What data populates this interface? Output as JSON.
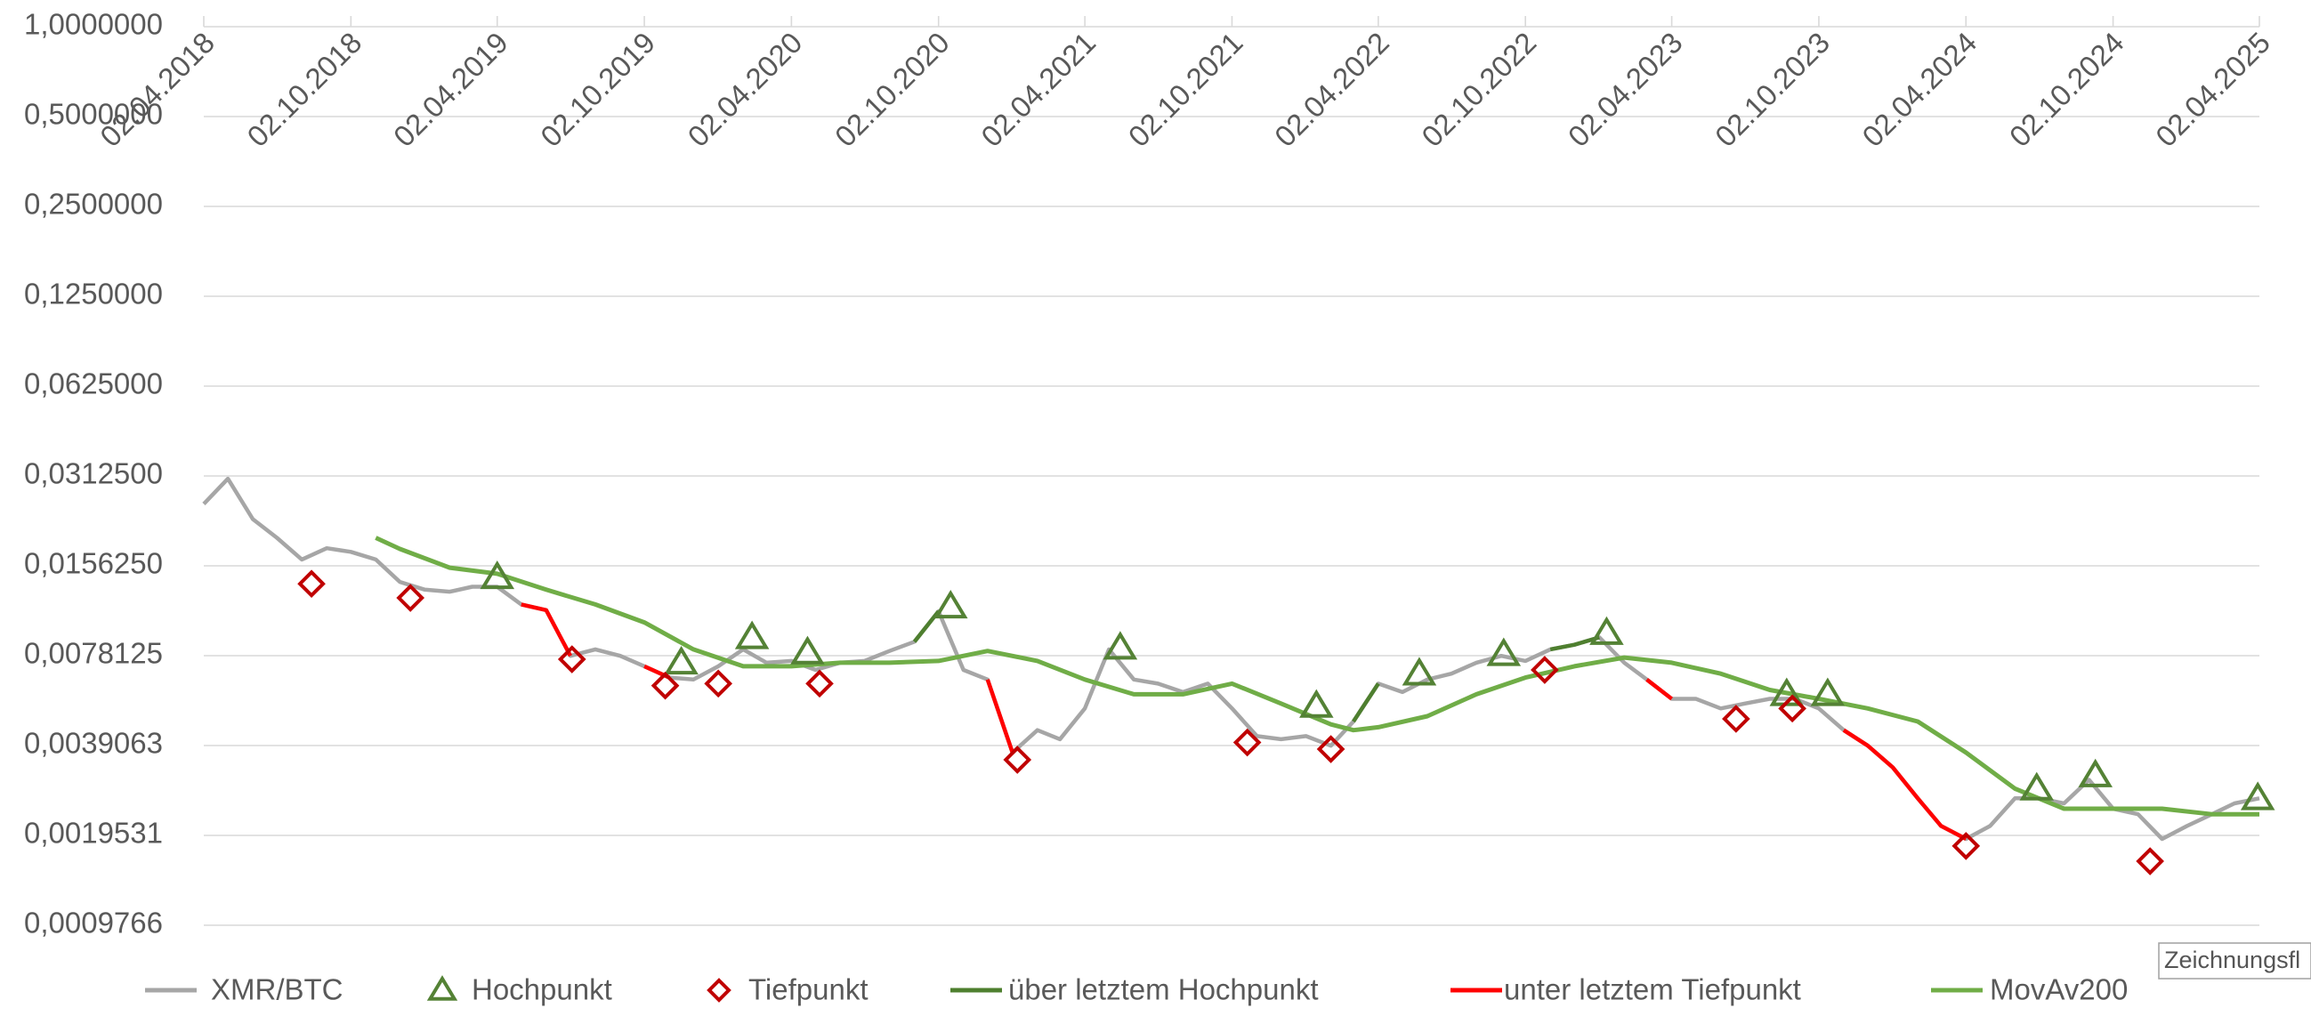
{
  "chart_data": {
    "type": "line",
    "log_base": 2,
    "grid": true,
    "legend": "bottom",
    "tooltip": "Zeichnungsfl",
    "xlim": [
      "02.04.2018",
      "02.04.2025"
    ],
    "xticks": [
      "02.04.2018",
      "02.10.2018",
      "02.04.2019",
      "02.10.2019",
      "02.04.2020",
      "02.10.2020",
      "02.04.2021",
      "02.10.2021",
      "02.04.2022",
      "02.10.2022",
      "02.04.2023",
      "02.10.2023",
      "02.04.2024",
      "02.10.2024",
      "02.04.2025"
    ],
    "ylim": [
      0.0009765625,
      1
    ],
    "yticks": [
      {
        "value": 1,
        "label": "1,0000000"
      },
      {
        "value": 0.5,
        "label": "0,5000000"
      },
      {
        "value": 0.25,
        "label": "0,2500000"
      },
      {
        "value": 0.125,
        "label": "0,1250000"
      },
      {
        "value": 0.0625,
        "label": "0,0625000"
      },
      {
        "value": 0.03125,
        "label": "0,0312500"
      },
      {
        "value": 0.015625,
        "label": "0,0156250"
      },
      {
        "value": 0.0078125,
        "label": "0,0078125"
      },
      {
        "value": 0.00390625,
        "label": "0,0039063"
      },
      {
        "value": 0.001953125,
        "label": "0,0019531"
      },
      {
        "value": 0.0009765625,
        "label": "0,0009766"
      }
    ],
    "x": [
      "02.04.2018",
      "02.05.2018",
      "02.06.2018",
      "02.07.2018",
      "02.08.2018",
      "02.09.2018",
      "02.10.2018",
      "02.11.2018",
      "02.12.2018",
      "02.01.2019",
      "02.02.2019",
      "02.03.2019",
      "02.04.2019",
      "02.05.2019",
      "02.06.2019",
      "02.07.2019",
      "02.08.2019",
      "02.09.2019",
      "02.10.2019",
      "02.11.2019",
      "02.12.2019",
      "02.01.2020",
      "02.02.2020",
      "02.03.2020",
      "02.04.2020",
      "02.05.2020",
      "02.06.2020",
      "02.07.2020",
      "02.08.2020",
      "02.09.2020",
      "02.10.2020",
      "02.11.2020",
      "02.12.2020",
      "02.01.2021",
      "02.02.2021",
      "02.03.2021",
      "02.04.2021",
      "02.05.2021",
      "02.06.2021",
      "02.07.2021",
      "02.08.2021",
      "02.09.2021",
      "02.10.2021",
      "02.11.2021",
      "02.12.2021",
      "02.01.2022",
      "02.02.2022",
      "02.03.2022",
      "02.04.2022",
      "02.05.2022",
      "02.06.2022",
      "02.07.2022",
      "02.08.2022",
      "02.09.2022",
      "02.10.2022",
      "02.11.2022",
      "02.12.2022",
      "02.01.2023",
      "02.02.2023",
      "02.03.2023",
      "02.04.2023",
      "02.05.2023",
      "02.06.2023",
      "02.07.2023",
      "02.08.2023",
      "02.09.2023",
      "02.10.2023",
      "02.11.2023",
      "02.12.2023",
      "02.01.2024",
      "02.02.2024",
      "02.03.2024",
      "02.04.2024",
      "02.05.2024",
      "02.06.2024",
      "02.07.2024",
      "02.08.2024",
      "02.09.2024",
      "02.10.2024",
      "02.11.2024",
      "02.12.2024",
      "02.01.2025",
      "02.02.2025",
      "02.03.2025",
      "02.04.2025"
    ],
    "series": [
      {
        "name": "XMR/BTC",
        "kind": "line",
        "color": "#a6a6a6",
        "values": [
          0.0252,
          0.0306,
          0.0224,
          0.0194,
          0.0164,
          0.0179,
          0.0174,
          0.0164,
          0.0138,
          0.013,
          0.0128,
          0.0133,
          0.0133,
          0.0116,
          0.0111,
          0.0078,
          0.0082,
          0.0078,
          0.0072,
          0.0066,
          0.0065,
          0.0072,
          0.0082,
          0.0074,
          0.0075,
          0.007,
          0.0074,
          0.0075,
          0.0081,
          0.0087,
          0.011,
          0.007,
          0.0065,
          0.0037,
          0.0044,
          0.0041,
          0.0052,
          0.0082,
          0.0065,
          0.0063,
          0.0059,
          0.0063,
          0.0052,
          0.0042,
          0.0041,
          0.0042,
          0.0039,
          0.0047,
          0.0063,
          0.0059,
          0.0065,
          0.0068,
          0.0074,
          0.0078,
          0.0075,
          0.0082,
          0.0085,
          0.009,
          0.0074,
          0.0065,
          0.0056,
          0.0056,
          0.0052,
          0.0054,
          0.0056,
          0.0056,
          0.0052,
          0.0044,
          0.0039,
          0.0033,
          0.0026,
          0.0021,
          0.0019,
          0.0021,
          0.0026,
          0.0026,
          0.0025,
          0.003,
          0.0024,
          0.0023,
          0.0019,
          0.0021,
          0.0023,
          0.0025,
          0.0026
        ]
      },
      {
        "name": "Hochpunkt",
        "kind": "marker",
        "marker": "triangle",
        "color": "#548235",
        "x": [
          "02.04.2019",
          "17.11.2019",
          "13.02.2020",
          "22.04.2020",
          "17.10.2020",
          "16.05.2021",
          "15.01.2022",
          "23.05.2022",
          "05.09.2022",
          "11.01.2023",
          "23.08.2023",
          "13.10.2023",
          "29.06.2024",
          "10.09.2024",
          "31.03.2025"
        ],
        "values": [
          0.0143,
          0.0074,
          0.009,
          0.008,
          0.0114,
          0.0083,
          0.0053,
          0.0068,
          0.0079,
          0.0093,
          0.0058,
          0.0058,
          0.0028,
          0.0031,
          0.0026
        ]
      },
      {
        "name": "Tiefpunkt",
        "kind": "marker",
        "marker": "diamond",
        "color": "#c00000",
        "x": [
          "14.08.2018",
          "15.12.2018",
          "04.07.2019",
          "28.10.2019",
          "02.01.2020",
          "07.05.2020",
          "08.01.2021",
          "21.10.2021",
          "02.02.2022",
          "26.10.2022",
          "21.06.2023",
          "30.08.2023",
          "02.04.2024",
          "17.11.2024"
        ],
        "values": [
          0.0136,
          0.0122,
          0.0076,
          0.0062,
          0.0063,
          0.0063,
          0.0035,
          0.004,
          0.0038,
          0.007,
          0.0048,
          0.0052,
          0.0018,
          0.0016
        ]
      },
      {
        "name": "über letztem Hochpunkt",
        "kind": "line",
        "color": "#4e7f2f",
        "values": [
          null,
          null,
          null,
          null,
          null,
          null,
          null,
          null,
          null,
          null,
          null,
          null,
          null,
          null,
          null,
          null,
          null,
          null,
          null,
          null,
          null,
          null,
          null,
          null,
          null,
          null,
          null,
          null,
          null,
          0.0087,
          0.011,
          null,
          null,
          null,
          null,
          null,
          null,
          null,
          null,
          null,
          null,
          null,
          null,
          null,
          null,
          null,
          null,
          0.0047,
          0.0063,
          null,
          null,
          null,
          null,
          null,
          null,
          0.0082,
          0.0085,
          0.009,
          null,
          null,
          null,
          null,
          null,
          null,
          null,
          null,
          null,
          null,
          null,
          null,
          null,
          null,
          null,
          null,
          null,
          null,
          null,
          null,
          null,
          null,
          null,
          null,
          null,
          null,
          null
        ]
      },
      {
        "name": "unter letztem Tiefpunkt",
        "kind": "line",
        "color": "#ff0000",
        "values": [
          null,
          null,
          null,
          null,
          null,
          null,
          null,
          null,
          null,
          null,
          null,
          null,
          null,
          0.0116,
          0.0111,
          0.0078,
          null,
          null,
          0.0072,
          0.0066,
          null,
          null,
          null,
          null,
          null,
          null,
          null,
          null,
          null,
          null,
          null,
          null,
          0.0065,
          0.0037,
          null,
          null,
          null,
          null,
          null,
          null,
          null,
          null,
          null,
          null,
          null,
          null,
          null,
          null,
          null,
          null,
          null,
          null,
          null,
          null,
          null,
          null,
          null,
          null,
          null,
          0.0065,
          0.0056,
          null,
          null,
          null,
          null,
          null,
          null,
          0.0044,
          0.0039,
          0.0033,
          0.0026,
          0.0021,
          0.0019,
          null,
          null,
          null,
          null,
          null,
          null,
          null,
          null,
          null,
          null,
          null,
          null
        ]
      },
      {
        "name": "MovAv200",
        "kind": "line",
        "color": "#70ad47",
        "x": [
          "02.11.2018",
          "02.12.2018",
          "02.02.2019",
          "02.04.2019",
          "02.06.2019",
          "02.08.2019",
          "02.10.2019",
          "02.12.2019",
          "02.02.2020",
          "02.04.2020",
          "02.06.2020",
          "02.08.2020",
          "02.10.2020",
          "02.12.2020",
          "02.02.2021",
          "02.04.2021",
          "02.06.2021",
          "02.08.2021",
          "02.10.2021",
          "02.12.2021",
          "02.02.2022",
          "02.03.2022",
          "02.04.2022",
          "02.06.2022",
          "02.08.2022",
          "02.10.2022",
          "02.12.2022",
          "02.02.2023",
          "02.04.2023",
          "02.06.2023",
          "02.08.2023",
          "02.10.2023",
          "02.12.2023",
          "02.02.2024",
          "02.04.2024",
          "02.06.2024",
          "02.08.2024",
          "02.10.2024",
          "02.12.2024",
          "02.02.2025",
          "02.04.2025"
        ],
        "values": [
          0.0194,
          0.0178,
          0.0154,
          0.0147,
          0.013,
          0.0116,
          0.0101,
          0.0082,
          0.0072,
          0.0072,
          0.0074,
          0.0074,
          0.0075,
          0.0081,
          0.0075,
          0.0065,
          0.0058,
          0.0058,
          0.0063,
          0.0054,
          0.0046,
          0.0044,
          0.0045,
          0.0049,
          0.0058,
          0.0066,
          0.0072,
          0.0077,
          0.0074,
          0.0068,
          0.006,
          0.0056,
          0.0052,
          0.0047,
          0.0037,
          0.0028,
          0.0024,
          0.0024,
          0.0024,
          0.0023,
          0.0023
        ]
      }
    ]
  }
}
